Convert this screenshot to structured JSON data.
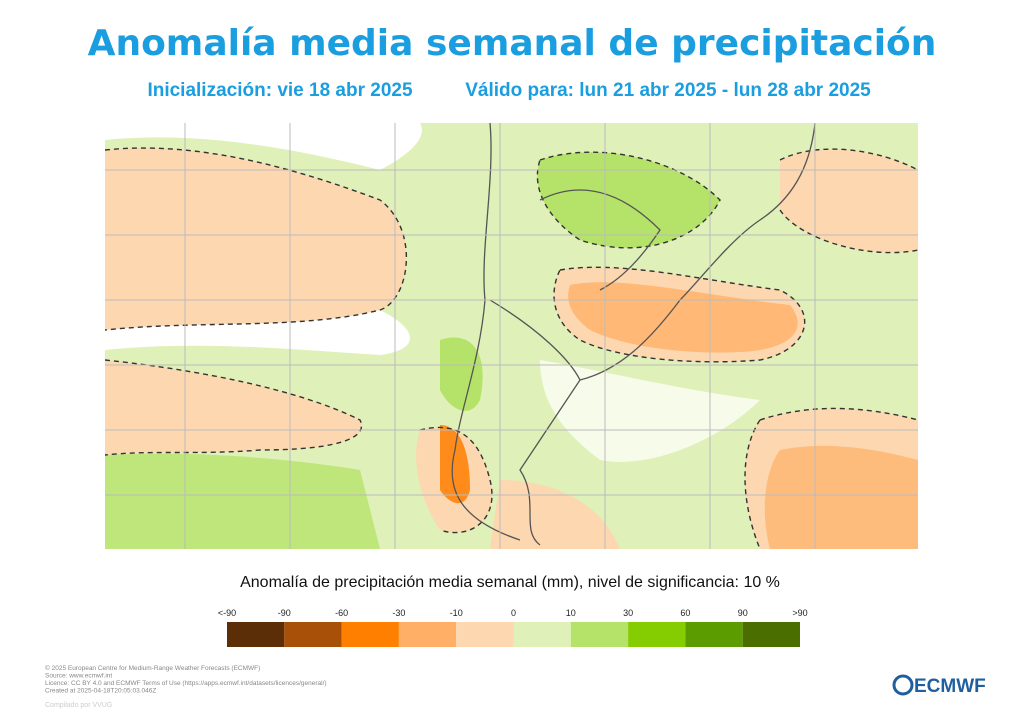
{
  "header": {
    "title": "Anomalía media semanal de precipitación",
    "init": "Inicialización: vie 18 abr 2025",
    "valid": "Válido para: lun 21 abr 2025 - lun 28 abr 2025"
  },
  "legend": {
    "title": "Anomalía de precipitación media semanal (mm), nivel de significancia: 10 %",
    "labels": [
      "<-90",
      "-90",
      "-60",
      "-30",
      "-10",
      "0",
      "10",
      "30",
      "60",
      "90",
      ">90"
    ],
    "colors": [
      "#5c2e08",
      "#a84f08",
      "#ff7f00",
      "#ffb066",
      "#fcd7b0",
      "#dff0b8",
      "#b5e36a",
      "#85cc00",
      "#5b9c00",
      "#4a6e00"
    ]
  },
  "footer": {
    "lines": [
      "© 2025 European Centre for Medium-Range Weather Forecasts (ECMWF)",
      "Source: www.ecmwf.int",
      "Licence: CC BY 4.0 and ECMWF Terms of Use (https://apps.ecmwf.int/datasets/licences/general/)",
      "Created at 2025-04-18T20:05:03.046Z"
    ],
    "compiled": "Compilado por VVUG",
    "logo": "ECMWF"
  }
}
